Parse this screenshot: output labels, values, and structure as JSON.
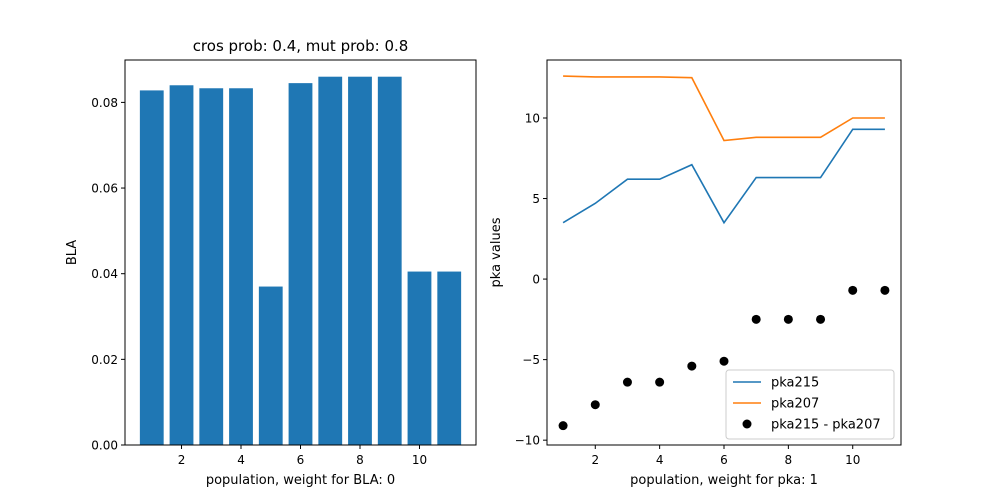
{
  "chart_data": [
    {
      "type": "bar",
      "title": "cros prob: 0.4, mut prob: 0.8",
      "xlabel": "population, weight for BLA: 0",
      "ylabel": "BLA",
      "x": [
        1,
        2,
        3,
        4,
        5,
        6,
        7,
        8,
        9,
        10,
        11
      ],
      "values": [
        0.0828,
        0.084,
        0.0833,
        0.0833,
        0.037,
        0.0845,
        0.086,
        0.086,
        0.086,
        0.0405,
        0.0405
      ],
      "color": "#1f77b4",
      "xlim": [
        0.1,
        11.9
      ],
      "ylim": [
        0,
        0.0899
      ],
      "xticks": [
        2,
        4,
        6,
        8,
        10
      ],
      "yticks": [
        0.0,
        0.02,
        0.04,
        0.06,
        0.08
      ],
      "ytick_labels": [
        "0.00",
        "0.02",
        "0.04",
        "0.06",
        "0.08"
      ]
    },
    {
      "type": "line",
      "title": "",
      "xlabel": "population, weight for pka: 1",
      "ylabel": "pka values",
      "x": [
        1,
        2,
        3,
        4,
        5,
        6,
        7,
        8,
        9,
        10,
        11
      ],
      "xlim": [
        0.5,
        11.5
      ],
      "ylim": [
        -10.3,
        13.6
      ],
      "xticks": [
        2,
        4,
        6,
        8,
        10
      ],
      "yticks": [
        -10,
        -5,
        0,
        5,
        10
      ],
      "series": [
        {
          "name": "pka215",
          "kind": "line",
          "color": "#1f77b4",
          "values": [
            3.5,
            4.7,
            6.2,
            6.2,
            7.1,
            3.5,
            6.3,
            6.3,
            6.3,
            9.3,
            9.3
          ]
        },
        {
          "name": "pka207",
          "kind": "line",
          "color": "#ff7f0e",
          "values": [
            12.6,
            12.55,
            12.55,
            12.55,
            12.5,
            8.6,
            8.8,
            8.8,
            8.8,
            10.0,
            10.0
          ]
        },
        {
          "name": "pka215 - pka207",
          "kind": "scatter",
          "color": "#000000",
          "values": [
            -9.1,
            -7.8,
            -6.4,
            -6.4,
            -5.4,
            -5.1,
            -2.5,
            -2.5,
            -2.5,
            -0.7,
            -0.7
          ]
        }
      ],
      "legend_position": "bottom-right"
    }
  ]
}
